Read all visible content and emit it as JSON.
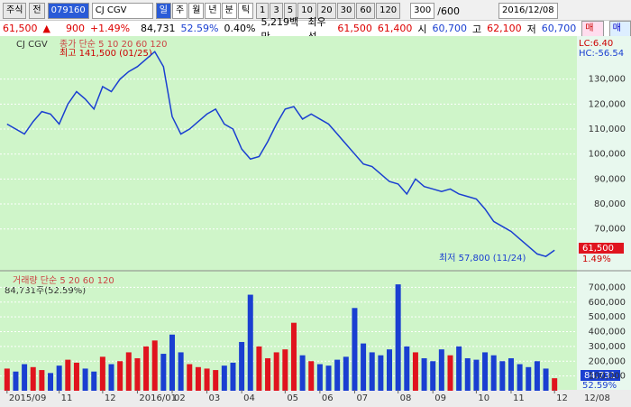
{
  "toolbar": {
    "market": "주식",
    "scope": "전",
    "code": "079160",
    "name": "CJ CGV",
    "periods": [
      "일",
      "주",
      "월",
      "년",
      "분",
      "틱"
    ],
    "intervals": [
      "1",
      "3",
      "5",
      "10",
      "20",
      "30",
      "60",
      "120"
    ],
    "count": "300",
    "count_max": "/600",
    "date": "2016/12/08"
  },
  "quote": {
    "price": "61,500",
    "arrow": "▲",
    "change": "900",
    "change_pct": "+1.49%",
    "volume": "84,731",
    "volume_ratio": "52.59%",
    "turnover_pct": "0.40%",
    "amount": "5,219백만",
    "best_label": "최우선",
    "ask": "61,500",
    "bid": "61,400",
    "open_label": "시",
    "open": "60,700",
    "high_label": "고",
    "high": "62,100",
    "low_label": "저",
    "low": "60,700",
    "buy": "매수",
    "sell": "매도"
  },
  "chart_data": [
    {
      "type": "line",
      "title": "CJ CGV",
      "subtitle": "종가 단순 5 10 20 60 120",
      "color": "#1a3fd1",
      "values": [
        112000,
        110000,
        108000,
        113000,
        117000,
        116000,
        112000,
        120000,
        125000,
        122000,
        118000,
        127000,
        125000,
        130000,
        133000,
        135000,
        138000,
        141000,
        135000,
        115000,
        108000,
        110000,
        113000,
        116000,
        118000,
        112000,
        110000,
        102000,
        98000,
        99000,
        105000,
        112000,
        118000,
        119000,
        114000,
        116000,
        114000,
        112000,
        108000,
        104000,
        100000,
        96000,
        95000,
        92000,
        89000,
        88000,
        84000,
        90000,
        87000,
        86000,
        85000,
        86000,
        84000,
        83000,
        82000,
        78000,
        73000,
        71000,
        69000,
        66000,
        63000,
        60000,
        59000,
        61500
      ],
      "ylim": [
        54000,
        146500
      ],
      "yticks": [
        {
          "value": 70000,
          "label": "70,000"
        },
        {
          "value": 80000,
          "label": "80,000"
        },
        {
          "value": 90000,
          "label": "90,000"
        },
        {
          "value": 100000,
          "label": "100,000"
        },
        {
          "value": 110000,
          "label": "110,000"
        },
        {
          "value": 120000,
          "label": "120,000"
        },
        {
          "value": 130000,
          "label": "130,000"
        }
      ],
      "grid": true,
      "annotations": {
        "high": "최고 141,500 (01/25)",
        "low": "최저 57,800 (11/24)",
        "lc": "LC:6.40",
        "hc": "HC:-56.54",
        "last": "61,500",
        "last_pct": "1.49%"
      }
    },
    {
      "type": "bar",
      "title": "거래량 단순 5 20 60 120",
      "subtitle": "84,731주(52.59%)",
      "up_color": "#e0141e",
      "down_color": "#1a3fd1",
      "categories": [
        "2015/09",
        null,
        null,
        null,
        null,
        null,
        "11",
        null,
        null,
        null,
        null,
        "12",
        null,
        null,
        null,
        "2016/01",
        null,
        null,
        null,
        "02",
        null,
        null,
        null,
        "03",
        null,
        null,
        null,
        "04",
        null,
        null,
        null,
        null,
        "05",
        null,
        null,
        null,
        "06",
        null,
        null,
        null,
        "07",
        null,
        null,
        null,
        null,
        "08",
        null,
        null,
        null,
        "09",
        null,
        null,
        null,
        null,
        "10",
        null,
        null,
        null,
        "11",
        null,
        null,
        null,
        null,
        "12"
      ],
      "values": [
        150000,
        130000,
        180000,
        160000,
        140000,
        120000,
        170000,
        210000,
        190000,
        150000,
        130000,
        230000,
        180000,
        200000,
        260000,
        220000,
        300000,
        340000,
        250000,
        380000,
        260000,
        180000,
        160000,
        150000,
        140000,
        170000,
        190000,
        330000,
        650000,
        300000,
        220000,
        260000,
        280000,
        460000,
        240000,
        200000,
        180000,
        170000,
        210000,
        230000,
        560000,
        320000,
        260000,
        240000,
        280000,
        720000,
        300000,
        260000,
        220000,
        200000,
        280000,
        240000,
        300000,
        220000,
        210000,
        260000,
        240000,
        200000,
        220000,
        180000,
        160000,
        200000,
        150000,
        84731
      ],
      "ylim": [
        0,
        800000
      ],
      "yticks": [
        {
          "value": 100000,
          "label": "100,000"
        },
        {
          "value": 200000,
          "label": "200,000"
        },
        {
          "value": 300000,
          "label": "300,000"
        },
        {
          "value": 400000,
          "label": "400,000"
        },
        {
          "value": 500000,
          "label": "500,000"
        },
        {
          "value": 600000,
          "label": "600,000"
        },
        {
          "value": 700000,
          "label": "700,000"
        }
      ],
      "grid": true,
      "annotations": {
        "last": "84,731",
        "last_pct": "52.59%",
        "end_date": "12/08"
      }
    }
  ]
}
